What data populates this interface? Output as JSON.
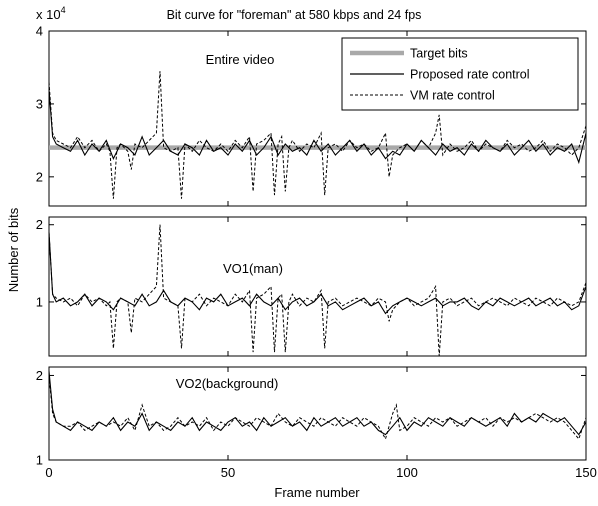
{
  "chart_data": {
    "type": "line",
    "title": "Bit curve for \"foreman\" at 580 kbps and 24 fps",
    "xlabel": "Frame number",
    "ylabel": "Number of bits",
    "y_scale_text": "x 10",
    "y_scale_exp": "4",
    "xlim": [
      0,
      150
    ],
    "xticks": [
      0,
      50,
      100,
      150
    ],
    "legend": {
      "placement": "top-right",
      "entries": [
        "Target bits",
        "Proposed rate control",
        "VM rate control"
      ]
    },
    "colors": {
      "target": "#a9a9a9",
      "proposed": "#000000",
      "vm": "#000000"
    },
    "panels": [
      {
        "label": "Entire video",
        "ylim": [
          1.6,
          4
        ],
        "yticks": [
          2,
          3,
          4
        ],
        "target_bits": 2.4,
        "proposed": {
          "x": [
            0,
            1,
            2,
            4,
            6,
            8,
            10,
            12,
            14,
            16,
            18,
            20,
            22,
            24,
            26,
            28,
            30,
            32,
            34,
            36,
            38,
            40,
            42,
            44,
            46,
            48,
            50,
            52,
            54,
            56,
            58,
            60,
            62,
            64,
            66,
            68,
            70,
            72,
            74,
            76,
            78,
            80,
            82,
            84,
            86,
            88,
            90,
            92,
            94,
            96,
            98,
            100,
            102,
            104,
            106,
            108,
            110,
            112,
            114,
            116,
            118,
            120,
            122,
            124,
            126,
            128,
            130,
            132,
            134,
            136,
            138,
            140,
            142,
            144,
            146,
            148,
            150
          ],
          "y": [
            3.2,
            2.55,
            2.45,
            2.4,
            2.35,
            2.5,
            2.3,
            2.45,
            2.35,
            2.5,
            2.25,
            2.45,
            2.4,
            2.3,
            2.55,
            2.3,
            2.4,
            2.5,
            2.35,
            2.3,
            2.45,
            2.4,
            2.3,
            2.5,
            2.35,
            2.4,
            2.3,
            2.45,
            2.35,
            2.5,
            2.3,
            2.4,
            2.55,
            2.3,
            2.45,
            2.35,
            2.4,
            2.3,
            2.5,
            2.35,
            2.45,
            2.3,
            2.4,
            2.5,
            2.35,
            2.45,
            2.3,
            2.4,
            2.25,
            2.35,
            2.3,
            2.45,
            2.35,
            2.5,
            2.4,
            2.3,
            2.45,
            2.35,
            2.4,
            2.3,
            2.45,
            2.35,
            2.5,
            2.4,
            2.35,
            2.45,
            2.3,
            2.4,
            2.5,
            2.35,
            2.45,
            2.3,
            2.4,
            2.35,
            2.45,
            2.2,
            2.6
          ]
        },
        "vm": {
          "x": [
            0,
            1,
            2,
            4,
            6,
            8,
            10,
            12,
            14,
            16,
            17,
            18,
            19,
            20,
            22,
            23,
            24,
            26,
            28,
            30,
            31,
            32,
            34,
            36,
            37,
            38,
            40,
            42,
            44,
            46,
            48,
            50,
            52,
            54,
            56,
            57,
            58,
            60,
            62,
            63,
            64,
            65,
            66,
            67,
            68,
            70,
            72,
            74,
            76,
            77,
            78,
            80,
            82,
            84,
            86,
            88,
            90,
            92,
            94,
            95,
            96,
            98,
            100,
            102,
            104,
            106,
            108,
            109,
            110,
            112,
            114,
            116,
            118,
            120,
            122,
            124,
            126,
            128,
            130,
            132,
            134,
            136,
            138,
            140,
            142,
            144,
            146,
            148,
            150
          ],
          "y": [
            3.3,
            2.6,
            2.5,
            2.45,
            2.4,
            2.55,
            2.4,
            2.5,
            2.35,
            2.45,
            2.35,
            1.7,
            2.4,
            2.45,
            2.35,
            2.1,
            2.45,
            2.4,
            2.5,
            2.6,
            3.45,
            2.4,
            2.35,
            2.4,
            1.7,
            2.45,
            2.35,
            2.5,
            2.4,
            2.35,
            2.45,
            2.35,
            2.5,
            2.4,
            2.55,
            1.8,
            2.45,
            2.5,
            2.6,
            1.75,
            2.45,
            2.55,
            1.8,
            2.4,
            2.5,
            2.35,
            2.45,
            2.4,
            2.6,
            1.75,
            2.4,
            2.45,
            2.35,
            2.5,
            2.4,
            2.45,
            2.35,
            2.4,
            2.6,
            2.0,
            2.3,
            2.4,
            2.45,
            2.35,
            2.5,
            2.4,
            2.6,
            2.85,
            2.3,
            2.45,
            2.35,
            2.4,
            2.5,
            2.35,
            2.45,
            2.4,
            2.35,
            2.5,
            2.4,
            2.45,
            2.35,
            2.4,
            2.5,
            2.35,
            2.45,
            2.4,
            2.3,
            2.4,
            2.7
          ]
        }
      },
      {
        "label": "VO1(man)",
        "ylim": [
          0.3,
          2.1
        ],
        "yticks": [
          1,
          2
        ],
        "proposed": {
          "x": [
            0,
            1,
            2,
            4,
            6,
            8,
            10,
            12,
            14,
            16,
            18,
            20,
            22,
            24,
            26,
            28,
            30,
            32,
            34,
            36,
            38,
            40,
            42,
            44,
            46,
            48,
            50,
            52,
            54,
            56,
            58,
            60,
            62,
            64,
            66,
            68,
            70,
            72,
            74,
            76,
            78,
            80,
            82,
            84,
            86,
            88,
            90,
            92,
            94,
            96,
            98,
            100,
            102,
            104,
            106,
            108,
            110,
            112,
            114,
            116,
            118,
            120,
            122,
            124,
            126,
            128,
            130,
            132,
            134,
            136,
            138,
            140,
            142,
            144,
            146,
            148,
            150
          ],
          "y": [
            1.9,
            1.1,
            1.0,
            1.05,
            0.95,
            1.0,
            1.1,
            0.95,
            1.05,
            1.0,
            0.9,
            1.05,
            1.0,
            0.95,
            1.1,
            0.95,
            1.0,
            1.15,
            1.0,
            0.95,
            1.05,
            1.0,
            0.9,
            1.05,
            1.0,
            1.1,
            0.95,
            1.0,
            1.05,
            0.95,
            1.1,
            1.0,
            0.95,
            1.05,
            0.9,
            1.0,
            1.05,
            0.95,
            1.0,
            1.1,
            0.95,
            1.0,
            0.9,
            0.95,
            1.0,
            1.05,
            0.95,
            1.0,
            0.85,
            0.95,
            1.0,
            1.05,
            1.0,
            0.95,
            1.0,
            1.05,
            0.95,
            1.0,
            1.0,
            1.05,
            0.95,
            0.9,
            1.0,
            0.95,
            1.05,
            1.0,
            0.95,
            1.0,
            1.05,
            0.95,
            1.0,
            1.05,
            0.95,
            1.0,
            0.9,
            0.95,
            1.2
          ]
        },
        "vm": {
          "x": [
            0,
            1,
            2,
            4,
            6,
            8,
            10,
            12,
            14,
            16,
            17,
            18,
            19,
            20,
            22,
            23,
            24,
            26,
            28,
            30,
            31,
            32,
            34,
            36,
            37,
            38,
            40,
            42,
            44,
            46,
            48,
            50,
            52,
            54,
            56,
            57,
            58,
            60,
            62,
            63,
            64,
            65,
            66,
            67,
            68,
            70,
            72,
            74,
            76,
            77,
            78,
            80,
            82,
            84,
            86,
            88,
            90,
            92,
            94,
            95,
            96,
            98,
            100,
            102,
            104,
            106,
            108,
            109,
            110,
            112,
            114,
            116,
            118,
            120,
            122,
            124,
            126,
            128,
            130,
            132,
            134,
            136,
            138,
            140,
            142,
            144,
            146,
            148,
            150
          ],
          "y": [
            1.9,
            1.1,
            1.05,
            1.0,
            1.05,
            0.95,
            1.1,
            1.0,
            1.05,
            0.95,
            1.0,
            0.4,
            1.0,
            1.05,
            1.0,
            0.6,
            1.05,
            1.0,
            1.1,
            1.2,
            2.0,
            1.05,
            1.0,
            0.95,
            0.4,
            1.05,
            1.0,
            1.1,
            0.95,
            1.05,
            1.0,
            0.95,
            1.1,
            1.0,
            1.15,
            0.35,
            1.05,
            1.1,
            1.2,
            0.35,
            1.05,
            1.1,
            0.35,
            1.0,
            1.1,
            0.95,
            1.05,
            1.0,
            1.15,
            0.4,
            1.0,
            1.05,
            0.95,
            1.0,
            1.05,
            1.0,
            0.95,
            1.05,
            1.0,
            0.75,
            0.9,
            1.0,
            1.05,
            0.95,
            1.0,
            1.05,
            1.2,
            0.3,
            1.0,
            1.05,
            0.95,
            1.0,
            1.05,
            0.95,
            1.0,
            1.05,
            1.0,
            0.95,
            1.05,
            1.0,
            0.95,
            1.05,
            1.0,
            0.95,
            1.05,
            1.0,
            0.95,
            1.0,
            1.25
          ]
        }
      },
      {
        "label": "VO2(background)",
        "ylim": [
          1.0,
          2.1
        ],
        "yticks": [
          1,
          2
        ],
        "proposed": {
          "x": [
            0,
            1,
            2,
            4,
            6,
            8,
            10,
            12,
            14,
            16,
            18,
            20,
            22,
            24,
            26,
            28,
            30,
            32,
            34,
            36,
            38,
            40,
            42,
            44,
            46,
            48,
            50,
            52,
            54,
            56,
            58,
            60,
            62,
            64,
            66,
            68,
            70,
            72,
            74,
            76,
            78,
            80,
            82,
            84,
            86,
            88,
            90,
            92,
            94,
            96,
            98,
            100,
            102,
            104,
            106,
            108,
            110,
            112,
            114,
            116,
            118,
            120,
            122,
            124,
            126,
            128,
            130,
            132,
            134,
            136,
            138,
            140,
            142,
            144,
            146,
            148,
            150
          ],
          "y": [
            2.05,
            1.6,
            1.45,
            1.4,
            1.35,
            1.45,
            1.4,
            1.35,
            1.45,
            1.4,
            1.5,
            1.35,
            1.45,
            1.4,
            1.55,
            1.35,
            1.45,
            1.4,
            1.35,
            1.45,
            1.4,
            1.5,
            1.35,
            1.45,
            1.4,
            1.35,
            1.45,
            1.5,
            1.4,
            1.45,
            1.35,
            1.5,
            1.4,
            1.45,
            1.5,
            1.4,
            1.45,
            1.35,
            1.5,
            1.4,
            1.45,
            1.5,
            1.4,
            1.45,
            1.5,
            1.4,
            1.45,
            1.35,
            1.3,
            1.4,
            1.5,
            1.35,
            1.45,
            1.4,
            1.5,
            1.45,
            1.4,
            1.5,
            1.45,
            1.4,
            1.5,
            1.45,
            1.4,
            1.45,
            1.5,
            1.4,
            1.55,
            1.45,
            1.5,
            1.45,
            1.55,
            1.5,
            1.45,
            1.5,
            1.4,
            1.3,
            1.45
          ]
        },
        "vm": {
          "x": [
            0,
            1,
            2,
            4,
            6,
            8,
            10,
            12,
            14,
            16,
            18,
            20,
            22,
            24,
            26,
            28,
            30,
            32,
            34,
            36,
            38,
            40,
            42,
            44,
            46,
            48,
            50,
            52,
            54,
            56,
            58,
            60,
            62,
            64,
            66,
            68,
            70,
            72,
            74,
            76,
            78,
            80,
            82,
            84,
            86,
            88,
            90,
            92,
            94,
            96,
            97,
            98,
            100,
            102,
            104,
            106,
            108,
            110,
            112,
            114,
            116,
            118,
            120,
            122,
            124,
            126,
            128,
            130,
            132,
            134,
            136,
            138,
            140,
            142,
            144,
            146,
            148,
            150
          ],
          "y": [
            2.0,
            1.55,
            1.45,
            1.4,
            1.4,
            1.45,
            1.35,
            1.4,
            1.45,
            1.4,
            1.45,
            1.4,
            1.5,
            1.35,
            1.65,
            1.4,
            1.45,
            1.35,
            1.4,
            1.5,
            1.4,
            1.45,
            1.4,
            1.5,
            1.35,
            1.45,
            1.4,
            1.5,
            1.45,
            1.4,
            1.5,
            1.45,
            1.4,
            1.55,
            1.45,
            1.4,
            1.5,
            1.45,
            1.4,
            1.5,
            1.45,
            1.4,
            1.5,
            1.45,
            1.4,
            1.5,
            1.45,
            1.4,
            1.25,
            1.55,
            1.65,
            1.35,
            1.4,
            1.5,
            1.45,
            1.4,
            1.5,
            1.45,
            1.5,
            1.4,
            1.45,
            1.5,
            1.45,
            1.5,
            1.4,
            1.5,
            1.45,
            1.5,
            1.45,
            1.5,
            1.55,
            1.5,
            1.45,
            1.5,
            1.45,
            1.35,
            1.25,
            1.5
          ]
        }
      }
    ]
  }
}
